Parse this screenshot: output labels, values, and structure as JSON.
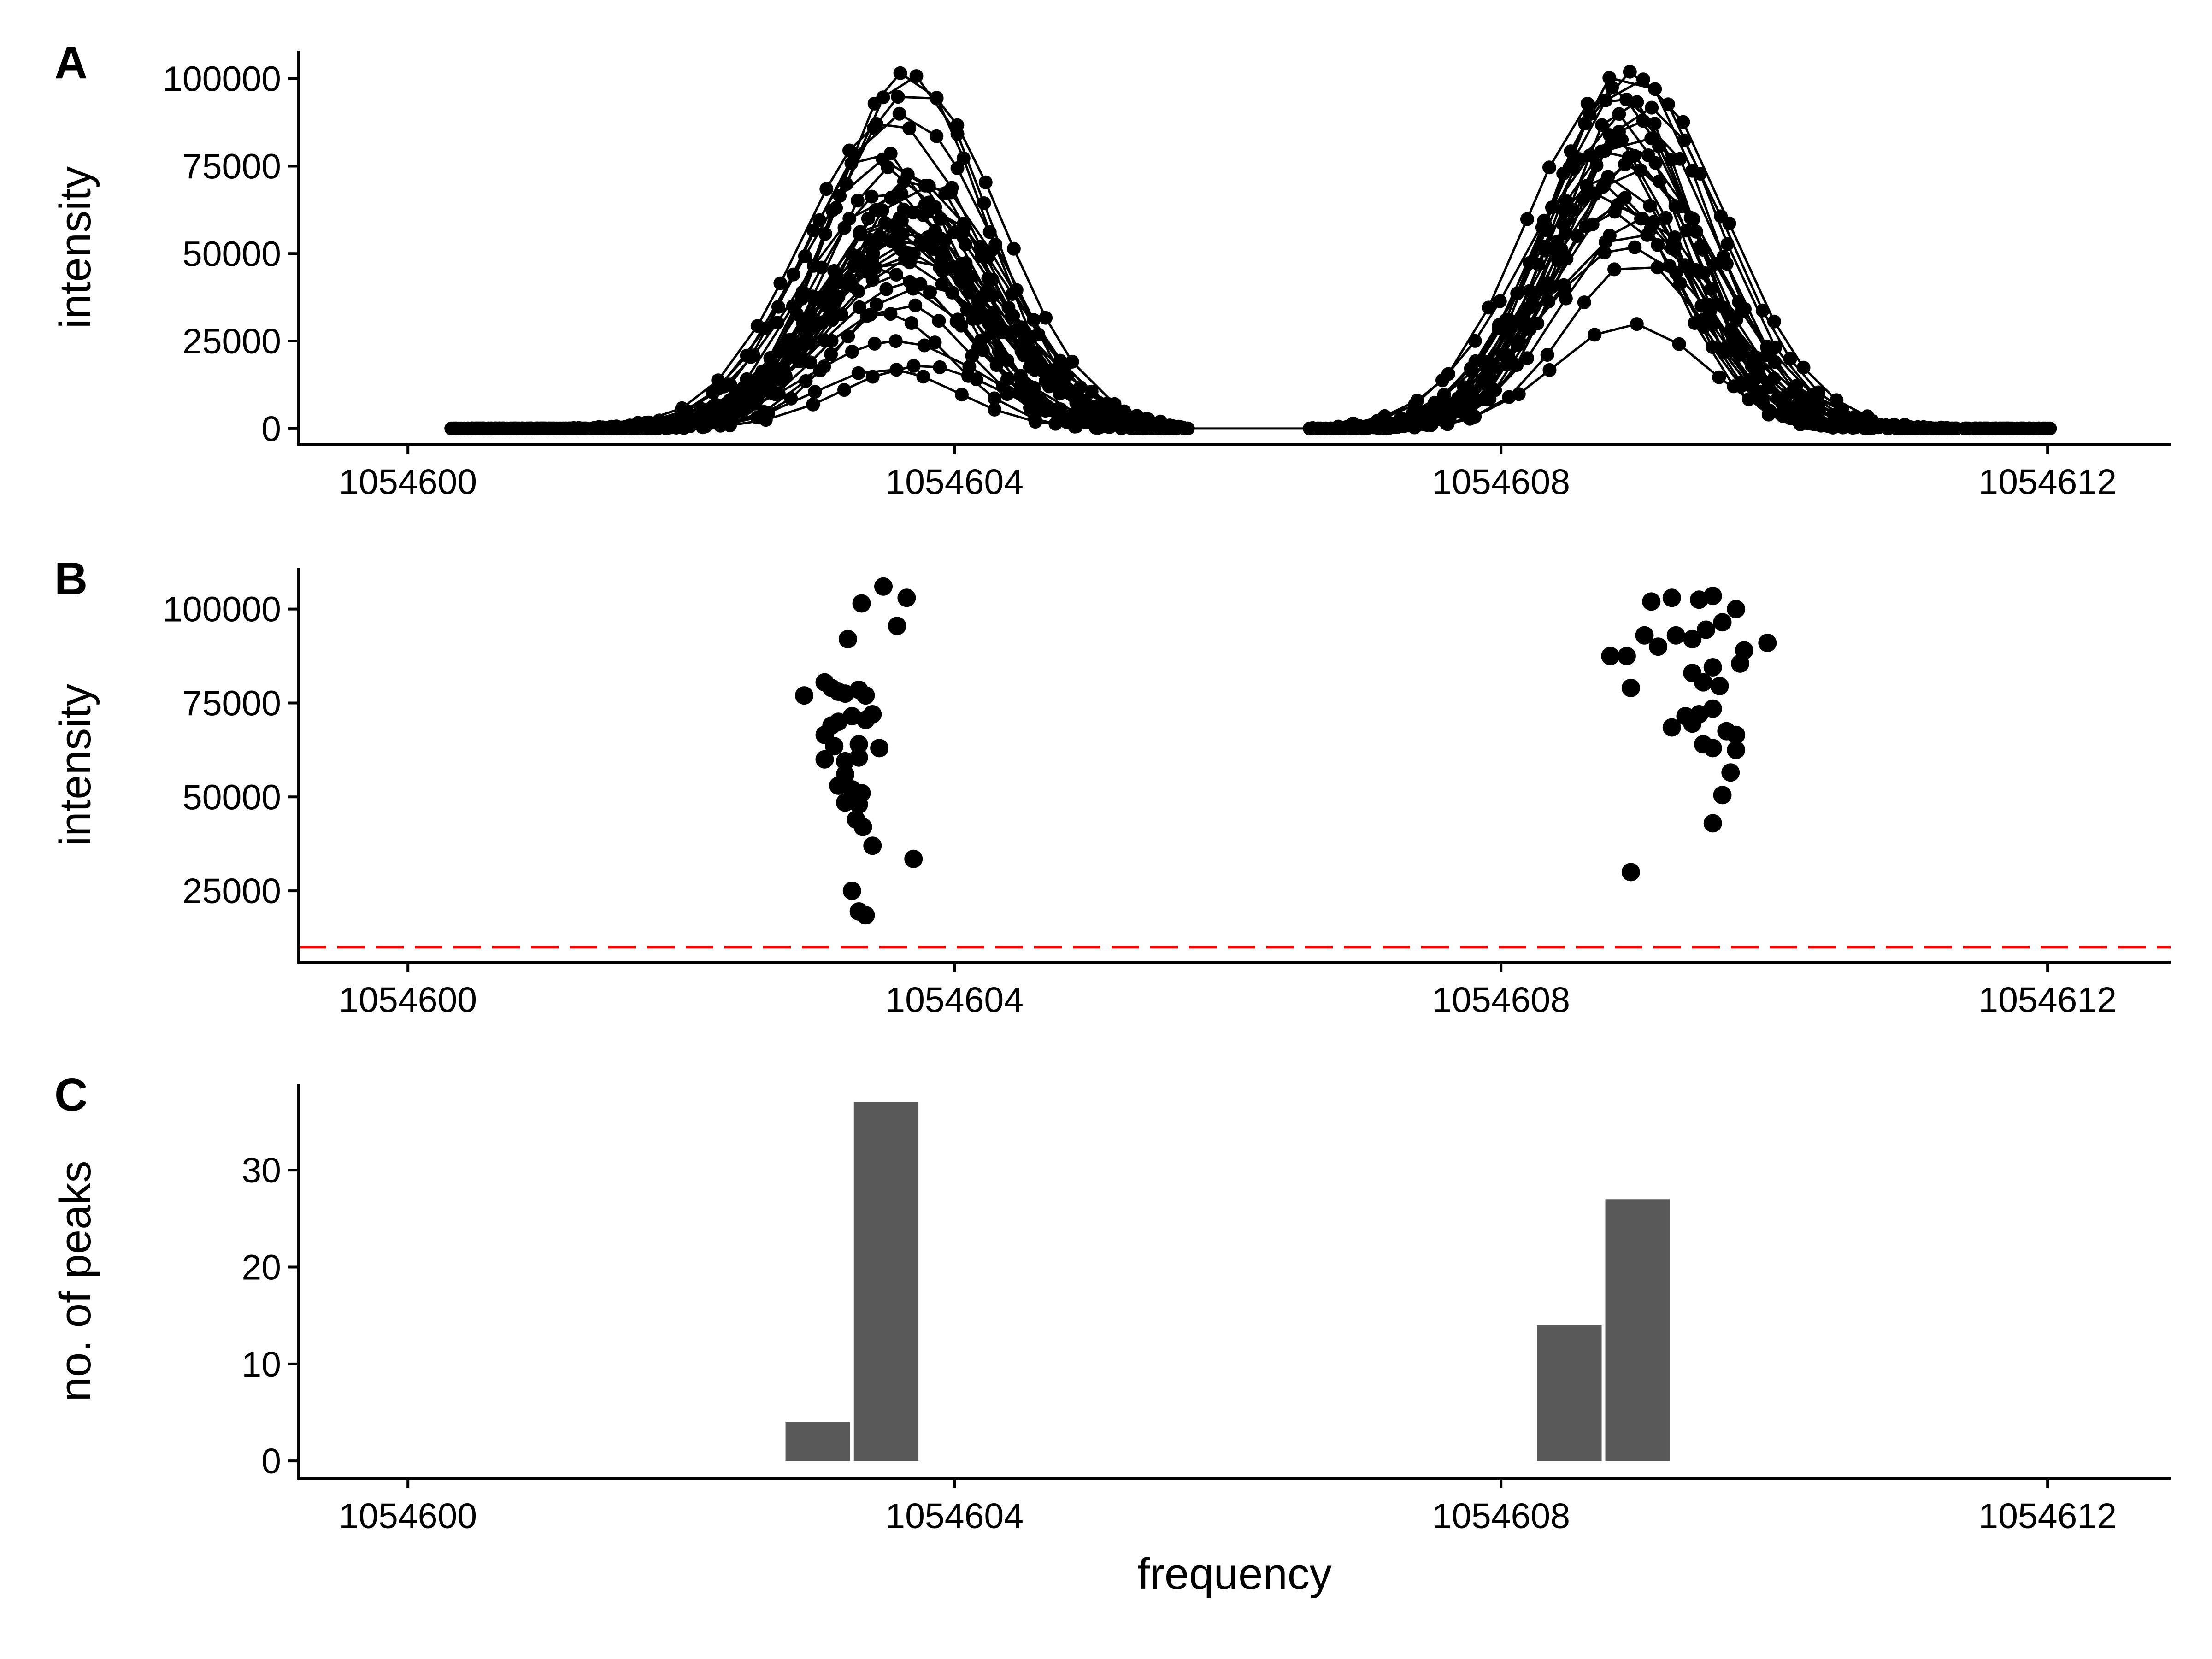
{
  "chart_data": [
    {
      "panel": "A",
      "type": "line",
      "xlabel": "",
      "ylabel": "intensity",
      "xlim": [
        1054599.2,
        1054612.9
      ],
      "ylim": [
        -4500,
        108000
      ],
      "x_ticks": [
        1054600,
        1054604,
        1054608,
        1054612
      ],
      "y_ticks": [
        0,
        25000,
        50000,
        75000,
        100000
      ],
      "x_tick_labels": [
        "1054600",
        "1054604",
        "1054608",
        "1054612"
      ],
      "y_tick_labels": [
        "0",
        "25000",
        "50000",
        "75000",
        "100000"
      ],
      "peaks": [
        {
          "apex_frequency": 1054603.6,
          "baseline_start": 1054600.3,
          "baseline_end": 1054605.6,
          "apex_values": [
            102000,
            101000,
            97000,
            90000,
            88000,
            80000,
            77000,
            75000,
            73000,
            72000,
            70000,
            68000,
            66000,
            65000,
            64000,
            62000,
            61000,
            60000,
            58000,
            57000,
            56000,
            55000,
            54000,
            53000,
            52000,
            50000,
            49000,
            48000,
            46000,
            44000,
            42000,
            40000,
            36000,
            33000,
            25000,
            18000,
            17000
          ]
        },
        {
          "apex_frequency": 1054608.9,
          "baseline_start": 1054606.6,
          "baseline_end": 1054611.9,
          "apex_values": [
            103000,
            102000,
            100000,
            98000,
            96000,
            94000,
            92000,
            90000,
            88000,
            86000,
            84000,
            82000,
            80000,
            78000,
            76000,
            74000,
            72000,
            70000,
            68000,
            66000,
            64000,
            62000,
            60000,
            56000,
            52000,
            48000,
            30000
          ]
        }
      ]
    },
    {
      "panel": "B",
      "type": "scatter",
      "xlabel": "",
      "ylabel": "intensity",
      "xlim": [
        1054599.2,
        1054612.9
      ],
      "ylim": [
        6000,
        111000
      ],
      "x_ticks": [
        1054600,
        1054604,
        1054608,
        1054612
      ],
      "y_ticks": [
        25000,
        50000,
        75000,
        100000
      ],
      "x_tick_labels": [
        "1054600",
        "1054604",
        "1054608",
        "1054612"
      ],
      "y_tick_labels": [
        "25000",
        "50000",
        "75000",
        "100000"
      ],
      "threshold": 10000,
      "threshold_color": "#ff0000",
      "points": [
        [
          1054602.9,
          77000
        ],
        [
          1054603.05,
          80500
        ],
        [
          1054603.1,
          79000
        ],
        [
          1054603.15,
          78000
        ],
        [
          1054603.2,
          77500
        ],
        [
          1054603.3,
          78500
        ],
        [
          1054603.35,
          77000
        ],
        [
          1054603.22,
          92000
        ],
        [
          1054603.32,
          101500
        ],
        [
          1054603.48,
          106000
        ],
        [
          1054603.65,
          103000
        ],
        [
          1054603.58,
          95500
        ],
        [
          1054603.05,
          66500
        ],
        [
          1054603.15,
          70000
        ],
        [
          1054603.25,
          71500
        ],
        [
          1054603.35,
          70500
        ],
        [
          1054603.05,
          60000
        ],
        [
          1054603.2,
          59500
        ],
        [
          1054603.3,
          60500
        ],
        [
          1054603.12,
          63500
        ],
        [
          1054603.3,
          64000
        ],
        [
          1054603.45,
          63000
        ],
        [
          1054603.15,
          53000
        ],
        [
          1054603.25,
          52000
        ],
        [
          1054603.32,
          51000
        ],
        [
          1054603.2,
          48500
        ],
        [
          1054603.3,
          48000
        ],
        [
          1054603.28,
          44000
        ],
        [
          1054603.33,
          42000
        ],
        [
          1054603.4,
          37000
        ],
        [
          1054603.7,
          33500
        ],
        [
          1054603.25,
          25000
        ],
        [
          1054603.3,
          19500
        ],
        [
          1054603.35,
          18500
        ],
        [
          1054603.1,
          69000
        ],
        [
          1054603.4,
          72000
        ],
        [
          1054603.2,
          56000
        ],
        [
          1054608.8,
          87500
        ],
        [
          1054608.92,
          87500
        ],
        [
          1054608.95,
          79000
        ],
        [
          1054609.05,
          93000
        ],
        [
          1054609.15,
          90000
        ],
        [
          1054609.28,
          93000
        ],
        [
          1054609.4,
          92000
        ],
        [
          1054609.5,
          94500
        ],
        [
          1054609.62,
          96500
        ],
        [
          1054609.72,
          100000
        ],
        [
          1054609.78,
          89000
        ],
        [
          1054609.75,
          85500
        ],
        [
          1054609.55,
          84500
        ],
        [
          1054609.4,
          83000
        ],
        [
          1054609.48,
          80500
        ],
        [
          1054609.6,
          79500
        ],
        [
          1054609.1,
          102000
        ],
        [
          1054609.25,
          103000
        ],
        [
          1054609.45,
          102500
        ],
        [
          1054609.55,
          103500
        ],
        [
          1054609.35,
          71500
        ],
        [
          1054609.45,
          72000
        ],
        [
          1054609.55,
          73500
        ],
        [
          1054609.25,
          68500
        ],
        [
          1054609.4,
          69500
        ],
        [
          1054609.65,
          67500
        ],
        [
          1054609.72,
          66500
        ],
        [
          1054609.48,
          64000
        ],
        [
          1054609.55,
          63000
        ],
        [
          1054609.72,
          62500
        ],
        [
          1054609.68,
          56500
        ],
        [
          1054609.62,
          50500
        ],
        [
          1054609.55,
          43000
        ],
        [
          1054608.95,
          30000
        ],
        [
          1054609.95,
          91000
        ]
      ]
    },
    {
      "panel": "C",
      "type": "bar",
      "xlabel": "frequency",
      "ylabel": "no. of peaks",
      "xlim": [
        1054599.2,
        1054612.9
      ],
      "ylim": [
        -1.8,
        38.9
      ],
      "x_ticks": [
        1054600,
        1054604,
        1054608,
        1054612
      ],
      "y_ticks": [
        0,
        10,
        20,
        30
      ],
      "x_tick_labels": [
        "1054600",
        "1054604",
        "1054608",
        "1054612"
      ],
      "y_tick_labels": [
        "0",
        "10",
        "20",
        "30"
      ],
      "bin_width": 0.5,
      "bars": [
        {
          "x": 1054603.0,
          "value": 4
        },
        {
          "x": 1054603.5,
          "value": 37
        },
        {
          "x": 1054608.5,
          "value": 14
        },
        {
          "x": 1054609.0,
          "value": 27
        }
      ]
    }
  ]
}
